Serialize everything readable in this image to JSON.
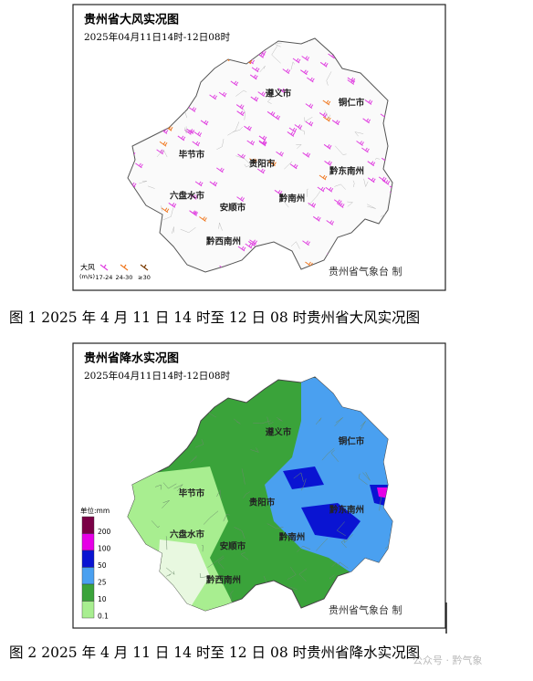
{
  "figures": [
    {
      "title": "贵州省大风实况图",
      "subtitle": "2025年04月11日14时-12日08时",
      "cities": [
        "遵义市",
        "铜仁市",
        "毕节市",
        "贵阳市",
        "黔东南州",
        "六盘水市",
        "安顺市",
        "黔南州",
        "黔西南州"
      ],
      "legend": {
        "title": "大风",
        "unit": "(m/s)",
        "items": [
          "17-24",
          "24-30",
          "≥30"
        ]
      },
      "credit": "贵州省气象台 制",
      "caption": "图 1 2025 年 4 月 11 日 14 时至 12 日 08 时贵州省大风实况图"
    },
    {
      "title": "贵州省降水实况图",
      "subtitle": "2025年04月11日14时-12日08时",
      "cities": [
        "遵义市",
        "铜仁市",
        "毕节市",
        "贵阳市",
        "黔东南州",
        "六盘水市",
        "安顺市",
        "黔南州",
        "黔西南州"
      ],
      "legend": {
        "title": "单位:mm",
        "items": [
          {
            "value": 200,
            "color": "#7a0046"
          },
          {
            "value": 100,
            "color": "#e600e6"
          },
          {
            "value": 50,
            "color": "#0a14d2"
          },
          {
            "value": 25,
            "color": "#4aa0f0"
          },
          {
            "value": 10,
            "color": "#3aa33a"
          },
          {
            "value": 0.1,
            "color": "#a8ee90"
          }
        ]
      },
      "credit": "贵州省气象台 制",
      "caption": "图 2 2025 年 4 月 11 日 14 时至 12 日 08 时贵州省降水实况图"
    }
  ],
  "watermark": "公众号 · 黔气象"
}
